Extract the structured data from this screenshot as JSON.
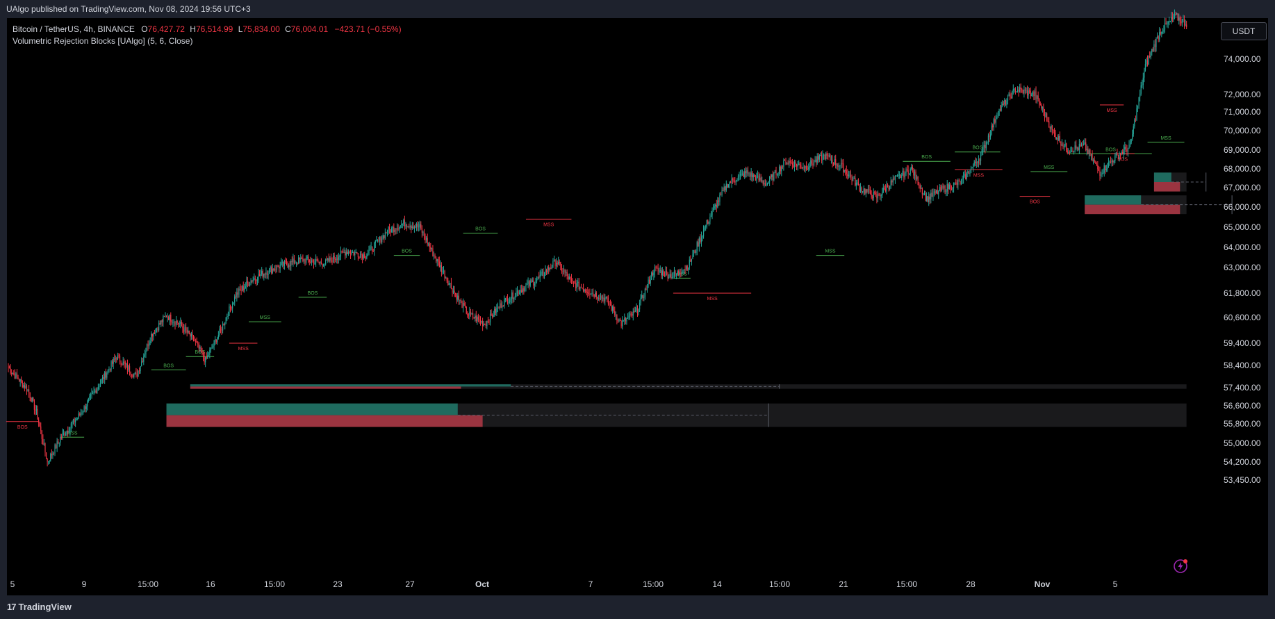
{
  "publisher_line": "UAlgo published on TradingView.com, Nov 08, 2024 19:56 UTC+3",
  "legend": {
    "symbol": "Bitcoin / TetherUS, 4h, BINANCE",
    "open_label": "O",
    "open": "76,427.72",
    "high_label": "H",
    "high": "76,514.99",
    "low_label": "L",
    "low": "75,834.00",
    "close_label": "C",
    "close": "76,004.01",
    "change": "−423.71 (−0.55%)",
    "indicator": "Volumetric Rejection Blocks [UAlgo] (5, 6, Close)"
  },
  "currency_button": "USDT",
  "brand": "TradingView",
  "colors": {
    "up": "#26a69a",
    "down": "#f23645",
    "bull_block": "#1f6b5f",
    "bear_block": "#9b3440",
    "block_bg": "#1a1a1c",
    "label_text": "#d1d4dc"
  },
  "chart_data": {
    "type": "candlestick",
    "symbol": "Bitcoin / TetherUS",
    "interval": "4h",
    "exchange": "BINANCE",
    "price_scale": {
      "ticks": [
        74000,
        72000,
        71000,
        70000,
        69000,
        68000,
        67000,
        66000,
        65000,
        64000,
        63000,
        61800,
        60600,
        59400,
        58400,
        57400,
        56600,
        55800,
        55000,
        54200,
        53450
      ],
      "tick_labels": [
        "74,000.00",
        "72,000.00",
        "71,000.00",
        "70,000.00",
        "69,000.00",
        "68,000.00",
        "67,000.00",
        "66,000.00",
        "65,000.00",
        "64,000.00",
        "63,000.00",
        "61,800.00",
        "60,600.00",
        "59,400.00",
        "58,400.00",
        "57,400.00",
        "56,600.00",
        "55,800.00",
        "55,000.00",
        "54,200.00",
        "53,450.00"
      ]
    },
    "time_axis": {
      "labels": [
        "5",
        "9",
        "15:00",
        "16",
        "15:00",
        "23",
        "27",
        "Oct",
        "7",
        "15:00",
        "14",
        "15:00",
        "21",
        "15:00",
        "28",
        "Nov",
        "5"
      ],
      "bold": [
        false,
        false,
        false,
        false,
        false,
        false,
        false,
        true,
        false,
        false,
        false,
        false,
        false,
        false,
        false,
        true,
        false
      ]
    },
    "anchors": [
      {
        "t": 0,
        "p": 58300
      },
      {
        "t": 18,
        "p": 57300
      },
      {
        "t": 26,
        "p": 56300
      },
      {
        "t": 36,
        "p": 54200
      },
      {
        "t": 48,
        "p": 55200
      },
      {
        "t": 66,
        "p": 56200
      },
      {
        "t": 82,
        "p": 57400
      },
      {
        "t": 100,
        "p": 58800
      },
      {
        "t": 118,
        "p": 57900
      },
      {
        "t": 132,
        "p": 59800
      },
      {
        "t": 146,
        "p": 60700
      },
      {
        "t": 158,
        "p": 60300
      },
      {
        "t": 172,
        "p": 59500
      },
      {
        "t": 182,
        "p": 58600
      },
      {
        "t": 196,
        "p": 60000
      },
      {
        "t": 210,
        "p": 61700
      },
      {
        "t": 224,
        "p": 62400
      },
      {
        "t": 238,
        "p": 62800
      },
      {
        "t": 252,
        "p": 63100
      },
      {
        "t": 272,
        "p": 63400
      },
      {
        "t": 292,
        "p": 63200
      },
      {
        "t": 312,
        "p": 63800
      },
      {
        "t": 330,
        "p": 63600
      },
      {
        "t": 350,
        "p": 64800
      },
      {
        "t": 366,
        "p": 65200
      },
      {
        "t": 380,
        "p": 65000
      },
      {
        "t": 394,
        "p": 63500
      },
      {
        "t": 410,
        "p": 62000
      },
      {
        "t": 424,
        "p": 60800
      },
      {
        "t": 440,
        "p": 60300
      },
      {
        "t": 456,
        "p": 61300
      },
      {
        "t": 474,
        "p": 62000
      },
      {
        "t": 490,
        "p": 62500
      },
      {
        "t": 506,
        "p": 63300
      },
      {
        "t": 520,
        "p": 62300
      },
      {
        "t": 536,
        "p": 61900
      },
      {
        "t": 552,
        "p": 61500
      },
      {
        "t": 566,
        "p": 60300
      },
      {
        "t": 580,
        "p": 60900
      },
      {
        "t": 596,
        "p": 62900
      },
      {
        "t": 614,
        "p": 62600
      },
      {
        "t": 628,
        "p": 63100
      },
      {
        "t": 646,
        "p": 65300
      },
      {
        "t": 664,
        "p": 67200
      },
      {
        "t": 682,
        "p": 67800
      },
      {
        "t": 700,
        "p": 67200
      },
      {
        "t": 718,
        "p": 68400
      },
      {
        "t": 736,
        "p": 68100
      },
      {
        "t": 754,
        "p": 68700
      },
      {
        "t": 770,
        "p": 68100
      },
      {
        "t": 786,
        "p": 67000
      },
      {
        "t": 802,
        "p": 66500
      },
      {
        "t": 818,
        "p": 67400
      },
      {
        "t": 834,
        "p": 68000
      },
      {
        "t": 848,
        "p": 66400
      },
      {
        "t": 862,
        "p": 66900
      },
      {
        "t": 880,
        "p": 67300
      },
      {
        "t": 898,
        "p": 68700
      },
      {
        "t": 914,
        "p": 71000
      },
      {
        "t": 930,
        "p": 72300
      },
      {
        "t": 948,
        "p": 72000
      },
      {
        "t": 964,
        "p": 70000
      },
      {
        "t": 978,
        "p": 69000
      },
      {
        "t": 994,
        "p": 69200
      },
      {
        "t": 1008,
        "p": 67800
      },
      {
        "t": 1022,
        "p": 68600
      },
      {
        "t": 1036,
        "p": 69200
      },
      {
        "t": 1050,
        "p": 73600
      },
      {
        "t": 1064,
        "p": 75600
      },
      {
        "t": 1078,
        "p": 76400
      },
      {
        "t": 1088,
        "p": 76000
      }
    ],
    "structure_labels": [
      {
        "text": "BOS",
        "kind": "bull",
        "t0": 132,
        "t1": 164,
        "p": 58200
      },
      {
        "text": "BOS",
        "kind": "bear",
        "t0": -2,
        "t1": 28,
        "p": 55900
      },
      {
        "text": "MSS",
        "kind": "bull",
        "t0": 48,
        "t1": 70,
        "p": 55250
      },
      {
        "text": "BOS",
        "kind": "bull",
        "t0": 164,
        "t1": 190,
        "p": 58800
      },
      {
        "text": "MSS",
        "kind": "bull",
        "t0": 222,
        "t1": 252,
        "p": 60400
      },
      {
        "text": "MSS",
        "kind": "bear",
        "t0": 204,
        "t1": 230,
        "p": 59400
      },
      {
        "text": "BOS",
        "kind": "bull",
        "t0": 268,
        "t1": 294,
        "p": 61600
      },
      {
        "text": "BOS",
        "kind": "bull",
        "t0": 356,
        "t1": 380,
        "p": 63600
      },
      {
        "text": "BOS",
        "kind": "bull",
        "t0": 420,
        "t1": 452,
        "p": 64700
      },
      {
        "text": "MSS",
        "kind": "bear",
        "t0": 478,
        "t1": 520,
        "p": 65400
      },
      {
        "text": "MSS",
        "kind": "bull",
        "t0": 614,
        "t1": 630,
        "p": 62500
      },
      {
        "text": "MSS",
        "kind": "bear",
        "t0": 614,
        "t1": 686,
        "p": 61800
      },
      {
        "text": "MSS",
        "kind": "bull",
        "t0": 746,
        "t1": 772,
        "p": 63600
      },
      {
        "text": "BOS",
        "kind": "bull",
        "t0": 826,
        "t1": 870,
        "p": 68400
      },
      {
        "text": "BOS",
        "kind": "bull",
        "t0": 874,
        "t1": 916,
        "p": 68900
      },
      {
        "text": "MSS",
        "kind": "bear",
        "t0": 874,
        "t1": 918,
        "p": 67950
      },
      {
        "text": "MSS",
        "kind": "bull",
        "t0": 944,
        "t1": 978,
        "p": 67850
      },
      {
        "text": "BOS",
        "kind": "bear",
        "t0": 934,
        "t1": 962,
        "p": 66550
      },
      {
        "text": "BOS",
        "kind": "bull",
        "t0": 980,
        "t1": 1056,
        "p": 68800
      },
      {
        "text": "MSS",
        "kind": "bear",
        "t0": 1008,
        "t1": 1030,
        "p": 71400
      },
      {
        "text": "BOS",
        "kind": "bear",
        "t0": 1018,
        "t1": 1040,
        "p": 68800
      },
      {
        "text": "MSS",
        "kind": "bull",
        "t0": 1052,
        "t1": 1086,
        "p": 69400
      }
    ],
    "rejection_blocks": [
      {
        "t0": 146,
        "t1": 1088,
        "top": 56700,
        "bottom": 55670,
        "bull_t1": 415,
        "bear_t1": 438,
        "mid_t1": 702
      },
      {
        "t0": 168,
        "t1": 1088,
        "top": 57550,
        "bottom": 57350,
        "bull_t1": 464,
        "bear_t1": 418,
        "mid_t1": 712
      },
      {
        "t0": 994,
        "t1": 1088,
        "top": 66600,
        "bottom": 65650,
        "bull_t1": 1046,
        "bear_t1": 1082,
        "mid_t1": 1130
      },
      {
        "t0": 1058,
        "t1": 1088,
        "top": 67800,
        "bottom": 66800,
        "bull_t1": 1074,
        "bear_t1": 1082,
        "mid_t1": 1106
      }
    ]
  }
}
